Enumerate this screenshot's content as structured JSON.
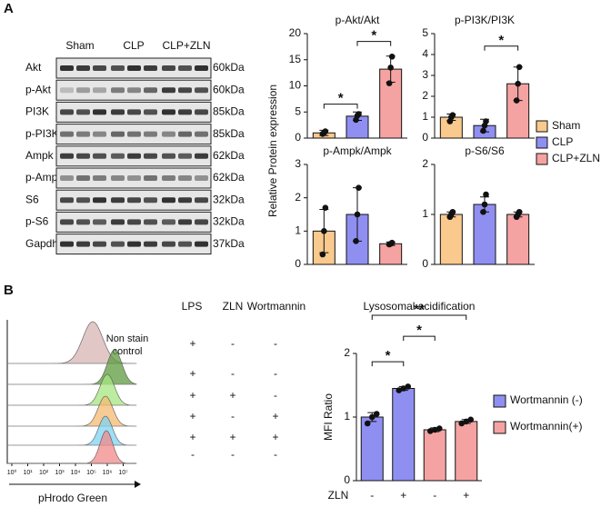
{
  "panel_labels": [
    "A",
    "B"
  ],
  "blot": {
    "groups": [
      "Sham",
      "CLP",
      "CLP+ZLN"
    ],
    "rows": [
      {
        "protein": "Akt",
        "size": "60kDa"
      },
      {
        "protein": "p-Akt",
        "size": "60kDa"
      },
      {
        "protein": "PI3K",
        "size": "85kDa"
      },
      {
        "protein": "p-PI3K",
        "size": "85kDa"
      },
      {
        "protein": "Ampk",
        "size": "62kDa"
      },
      {
        "protein": "p-Ampk",
        "size": "62kDa"
      },
      {
        "protein": "S6",
        "size": "32kDa"
      },
      {
        "protein": "p-S6",
        "size": "32kDa"
      },
      {
        "protein": "Gapdh",
        "size": "37kDa"
      }
    ]
  },
  "legend_a": [
    {
      "name": "Sham",
      "color": "#f9c98d"
    },
    {
      "name": "CLP",
      "color": "#8f8ff2"
    },
    {
      "name": "CLP+ZLN",
      "color": "#f5a3a2"
    }
  ],
  "ylabel_a": "Relative Protein expression",
  "flow": {
    "annotation": [
      "Non stain",
      "control"
    ],
    "xticks": [
      "10⁰",
      "10¹",
      "10²",
      "10³",
      "10⁴",
      "10⁵",
      "10⁶",
      "10⁷"
    ],
    "xlabel": "pHrodo Green"
  },
  "treatment_table": {
    "header": [
      "LPS",
      "ZLN",
      "Wortmannin"
    ],
    "rows": [
      [
        "+",
        "-",
        "-"
      ],
      [
        "+",
        "-",
        "-"
      ],
      [
        "+",
        "+",
        "-"
      ],
      [
        "+",
        "-",
        "+"
      ],
      [
        "+",
        "+",
        "+"
      ],
      [
        "-",
        "-",
        "-"
      ]
    ]
  },
  "chart_data": [
    {
      "type": "bar",
      "title": "p-Akt/Akt",
      "values": [
        1.0,
        4.2,
        13.2
      ],
      "errors": [
        0.5,
        0.8,
        2.5
      ],
      "points": [
        [
          0.8,
          1.0,
          1.3
        ],
        [
          3.5,
          4.3,
          4.6
        ],
        [
          10.5,
          13.5,
          15.6
        ]
      ],
      "ylim": [
        0,
        20
      ],
      "yticks": [
        0,
        5,
        10,
        15,
        20
      ],
      "significance": [
        {
          "from": 0,
          "to": 1,
          "y": 6.5,
          "label": "*"
        },
        {
          "from": 1,
          "to": 2,
          "y": 18.5,
          "label": "*"
        }
      ]
    },
    {
      "type": "bar",
      "title": "p-PI3K/PI3K",
      "values": [
        1.0,
        0.6,
        2.6
      ],
      "errors": [
        0.15,
        0.3,
        0.8
      ],
      "points": [
        [
          0.8,
          1.0,
          1.1
        ],
        [
          0.35,
          0.6,
          0.8
        ],
        [
          1.8,
          2.6,
          3.4
        ]
      ],
      "ylim": [
        0,
        5
      ],
      "yticks": [
        0,
        1,
        2,
        3,
        4,
        5
      ],
      "significance": [
        {
          "from": 1,
          "to": 2,
          "y": 4.4,
          "label": "*"
        }
      ]
    },
    {
      "type": "bar",
      "title": "p-Ampk/Ampk",
      "values": [
        1.0,
        1.5,
        0.62
      ],
      "errors": [
        0.65,
        0.8,
        0.05
      ],
      "points": [
        [
          0.3,
          1.0,
          1.7
        ],
        [
          0.7,
          1.5,
          2.3
        ],
        [
          0.6,
          0.62,
          0.65
        ]
      ],
      "ylim": [
        0,
        3
      ],
      "yticks": [
        0,
        1,
        2,
        3
      ]
    },
    {
      "type": "bar",
      "title": "p-S6/S6",
      "values": [
        1.0,
        1.2,
        1.0
      ],
      "errors": [
        0.05,
        0.15,
        0.05
      ],
      "points": [
        [
          0.95,
          1.0,
          1.05
        ],
        [
          1.05,
          1.2,
          1.4
        ],
        [
          0.95,
          1.0,
          1.05
        ]
      ],
      "ylim": [
        0,
        2
      ],
      "yticks": [
        0,
        1,
        2
      ]
    },
    {
      "type": "bar",
      "title": "Lysosomal acidification",
      "ylabel": "MFI Ratio",
      "xlabel": "ZLN",
      "categories": [
        "-",
        "+",
        "-",
        "+"
      ],
      "series": [
        {
          "name": "Wortmannin (-)",
          "color": "#8f8ff2",
          "values": [
            1.0,
            1.45,
            null,
            null
          ],
          "errors": [
            0.07,
            0.03,
            null,
            null
          ],
          "points": [
            [
              0.9,
              1.0,
              1.05
            ],
            [
              1.42,
              1.45,
              1.48
            ],
            null,
            null
          ]
        },
        {
          "name": "Wortmannin(+)",
          "color": "#f5a3a2",
          "values": [
            null,
            null,
            0.8,
            0.93
          ],
          "errors": [
            null,
            null,
            0.03,
            0.03
          ],
          "points": [
            null,
            null,
            [
              0.78,
              0.8,
              0.82
            ],
            [
              0.9,
              0.93,
              0.96
            ]
          ]
        }
      ],
      "ylim": [
        0,
        2
      ],
      "yticks": [
        0,
        1,
        2
      ],
      "significance": [
        {
          "from": 0,
          "to": 1,
          "y": 1.87,
          "label": "*"
        },
        {
          "from": 1,
          "to": 2,
          "y": 2.27,
          "label": "*"
        },
        {
          "from": 0,
          "to": 3,
          "y": 2.6,
          "label": "**"
        }
      ]
    }
  ]
}
